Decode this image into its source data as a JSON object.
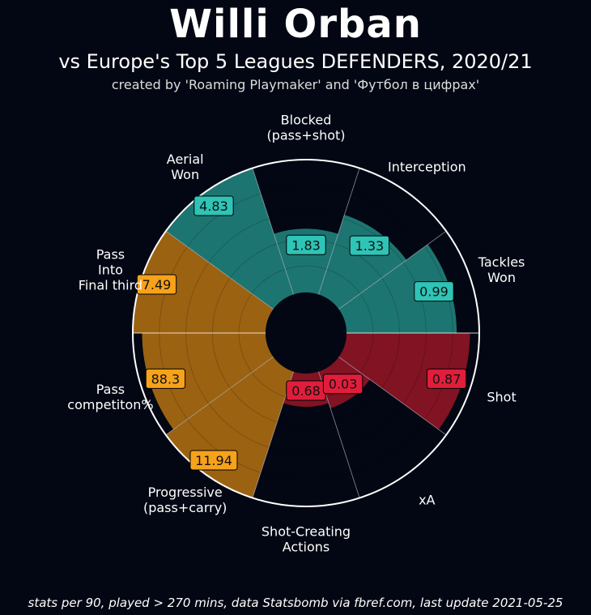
{
  "title": "Willi Orban",
  "subtitle": "vs Europe's Top 5 Leagues DEFENDERS, 2020/21",
  "credit": "created by 'Roaming Playmaker' and 'Футбол в цифрах'",
  "footer": "stats per 90, played > 270 mins, data Statsbomb via fbref.com, last update 2021-05-25",
  "colors": {
    "background": "#020713",
    "defending": "#1f7f7a",
    "defending_label": "#2ec4b6",
    "possession": "#a86a12",
    "possession_label": "#f7a21b",
    "attacking": "#8c1525",
    "attacking_label": "#e01e3c"
  },
  "chart_data": {
    "type": "radial-bar",
    "categories": [
      "Tackles\nWon",
      "Interception",
      "Blocked\n(pass+shot)",
      "Aerial\nWon",
      "Pass\nInto\nFinal third",
      "Pass\ncompetiton%",
      "Progressive\n(pass+carry)",
      "Shot-Creating\nActions",
      "xA",
      "Shot"
    ],
    "values": [
      "0.99",
      "1.33",
      "1.83",
      "4.83",
      "7.49",
      "88.3",
      "11.94",
      "0.68",
      "0.03",
      "0.87"
    ],
    "percentiles": [
      83,
      63,
      48,
      100,
      100,
      93,
      100,
      25,
      29,
      93
    ],
    "groups": [
      "defending",
      "defending",
      "defending",
      "defending",
      "possession",
      "possession",
      "possession",
      "attacking",
      "attacking",
      "attacking"
    ],
    "rlim": [
      0,
      100
    ],
    "grid": true
  }
}
